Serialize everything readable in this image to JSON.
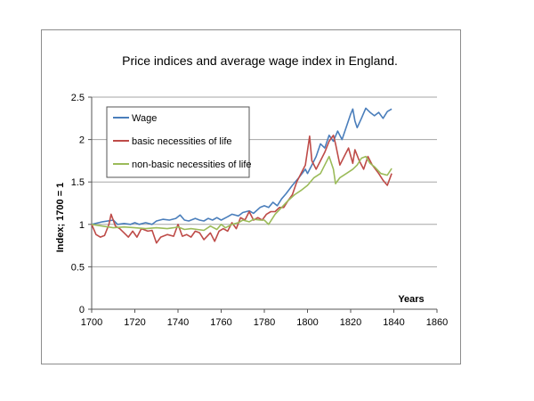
{
  "chart_data": {
    "type": "line",
    "title": "Price indices and average wage index in England.",
    "xlabel": "Years",
    "ylabel": "Index; 1700 = 1",
    "xlim": [
      1700,
      1860
    ],
    "ylim": [
      0,
      2.5
    ],
    "xticks": [
      1700,
      1720,
      1740,
      1760,
      1780,
      1800,
      1820,
      1840,
      1860
    ],
    "yticks": [
      0,
      0.5,
      1,
      1.5,
      2,
      2.5
    ],
    "xtick_labels": [
      "1700",
      "1720",
      "1740",
      "1760",
      "1780",
      "1800",
      "1820",
      "1840",
      "1860"
    ],
    "ytick_labels": [
      "0",
      "0.5",
      "1",
      "1.5",
      "2",
      "2.5"
    ],
    "grid": "horizontal",
    "legend_position": "top-left",
    "series": [
      {
        "name": "Wage",
        "color": "#4a7ebb",
        "points": [
          [
            1700,
            1.0
          ],
          [
            1705,
            1.03
          ],
          [
            1710,
            1.05
          ],
          [
            1712,
            1.0
          ],
          [
            1715,
            1.01
          ],
          [
            1718,
            1.0
          ],
          [
            1720,
            1.02
          ],
          [
            1722,
            1.0
          ],
          [
            1725,
            1.02
          ],
          [
            1728,
            1.0
          ],
          [
            1730,
            1.04
          ],
          [
            1733,
            1.06
          ],
          [
            1736,
            1.05
          ],
          [
            1739,
            1.07
          ],
          [
            1741,
            1.11
          ],
          [
            1743,
            1.05
          ],
          [
            1745,
            1.04
          ],
          [
            1748,
            1.07
          ],
          [
            1750,
            1.05
          ],
          [
            1752,
            1.04
          ],
          [
            1754,
            1.07
          ],
          [
            1756,
            1.05
          ],
          [
            1758,
            1.08
          ],
          [
            1760,
            1.05
          ],
          [
            1763,
            1.09
          ],
          [
            1765,
            1.12
          ],
          [
            1768,
            1.1
          ],
          [
            1770,
            1.14
          ],
          [
            1773,
            1.16
          ],
          [
            1775,
            1.13
          ],
          [
            1778,
            1.2
          ],
          [
            1780,
            1.22
          ],
          [
            1782,
            1.2
          ],
          [
            1784,
            1.26
          ],
          [
            1786,
            1.22
          ],
          [
            1788,
            1.3
          ],
          [
            1790,
            1.36
          ],
          [
            1793,
            1.46
          ],
          [
            1796,
            1.55
          ],
          [
            1799,
            1.65
          ],
          [
            1800,
            1.6
          ],
          [
            1802,
            1.7
          ],
          [
            1804,
            1.8
          ],
          [
            1806,
            1.95
          ],
          [
            1808,
            1.9
          ],
          [
            1810,
            2.05
          ],
          [
            1812,
            1.98
          ],
          [
            1814,
            2.1
          ],
          [
            1816,
            2.0
          ],
          [
            1818,
            2.15
          ],
          [
            1820,
            2.3
          ],
          [
            1821,
            2.36
          ],
          [
            1822,
            2.22
          ],
          [
            1823,
            2.14
          ],
          [
            1825,
            2.25
          ],
          [
            1827,
            2.37
          ],
          [
            1829,
            2.32
          ],
          [
            1831,
            2.28
          ],
          [
            1833,
            2.32
          ],
          [
            1835,
            2.25
          ],
          [
            1837,
            2.33
          ],
          [
            1839,
            2.36
          ]
        ]
      },
      {
        "name": "basic necessities of life",
        "color": "#be4b48",
        "points": [
          [
            1700,
            1.0
          ],
          [
            1702,
            0.88
          ],
          [
            1704,
            0.85
          ],
          [
            1706,
            0.87
          ],
          [
            1708,
            1.0
          ],
          [
            1709,
            1.12
          ],
          [
            1711,
            0.98
          ],
          [
            1713,
            0.95
          ],
          [
            1715,
            0.9
          ],
          [
            1717,
            0.85
          ],
          [
            1719,
            0.92
          ],
          [
            1721,
            0.85
          ],
          [
            1723,
            0.95
          ],
          [
            1726,
            0.92
          ],
          [
            1728,
            0.93
          ],
          [
            1730,
            0.78
          ],
          [
            1732,
            0.85
          ],
          [
            1735,
            0.88
          ],
          [
            1738,
            0.86
          ],
          [
            1740,
            1.0
          ],
          [
            1742,
            0.86
          ],
          [
            1744,
            0.88
          ],
          [
            1746,
            0.85
          ],
          [
            1748,
            0.92
          ],
          [
            1750,
            0.9
          ],
          [
            1752,
            0.82
          ],
          [
            1755,
            0.9
          ],
          [
            1757,
            0.8
          ],
          [
            1759,
            0.92
          ],
          [
            1761,
            0.95
          ],
          [
            1763,
            0.92
          ],
          [
            1765,
            1.02
          ],
          [
            1767,
            0.95
          ],
          [
            1769,
            1.08
          ],
          [
            1771,
            1.05
          ],
          [
            1773,
            1.15
          ],
          [
            1775,
            1.05
          ],
          [
            1777,
            1.08
          ],
          [
            1779,
            1.05
          ],
          [
            1781,
            1.12
          ],
          [
            1783,
            1.15
          ],
          [
            1785,
            1.15
          ],
          [
            1787,
            1.2
          ],
          [
            1789,
            1.2
          ],
          [
            1791,
            1.28
          ],
          [
            1793,
            1.35
          ],
          [
            1795,
            1.5
          ],
          [
            1797,
            1.6
          ],
          [
            1799,
            1.7
          ],
          [
            1801,
            2.04
          ],
          [
            1802,
            1.75
          ],
          [
            1804,
            1.65
          ],
          [
            1806,
            1.75
          ],
          [
            1808,
            1.85
          ],
          [
            1810,
            1.98
          ],
          [
            1812,
            2.05
          ],
          [
            1813,
            1.95
          ],
          [
            1815,
            1.7
          ],
          [
            1817,
            1.8
          ],
          [
            1819,
            1.9
          ],
          [
            1821,
            1.72
          ],
          [
            1822,
            1.88
          ],
          [
            1824,
            1.75
          ],
          [
            1826,
            1.65
          ],
          [
            1828,
            1.8
          ],
          [
            1830,
            1.7
          ],
          [
            1833,
            1.6
          ],
          [
            1835,
            1.52
          ],
          [
            1837,
            1.46
          ],
          [
            1839,
            1.6
          ]
        ]
      },
      {
        "name": "non-basic necessities of life",
        "color": "#9bbb59",
        "points": [
          [
            1700,
            1.0
          ],
          [
            1705,
            0.98
          ],
          [
            1710,
            0.96
          ],
          [
            1715,
            0.97
          ],
          [
            1720,
            0.96
          ],
          [
            1725,
            0.95
          ],
          [
            1730,
            0.96
          ],
          [
            1735,
            0.95
          ],
          [
            1738,
            0.96
          ],
          [
            1740,
            0.97
          ],
          [
            1743,
            0.94
          ],
          [
            1746,
            0.95
          ],
          [
            1749,
            0.94
          ],
          [
            1752,
            0.93
          ],
          [
            1755,
            0.98
          ],
          [
            1758,
            0.94
          ],
          [
            1760,
            1.0
          ],
          [
            1762,
            0.96
          ],
          [
            1765,
            1.0
          ],
          [
            1768,
            1.02
          ],
          [
            1770,
            1.05
          ],
          [
            1773,
            1.03
          ],
          [
            1775,
            1.06
          ],
          [
            1778,
            1.05
          ],
          [
            1780,
            1.05
          ],
          [
            1782,
            1.0
          ],
          [
            1785,
            1.12
          ],
          [
            1788,
            1.2
          ],
          [
            1791,
            1.28
          ],
          [
            1794,
            1.35
          ],
          [
            1797,
            1.4
          ],
          [
            1800,
            1.46
          ],
          [
            1803,
            1.55
          ],
          [
            1806,
            1.6
          ],
          [
            1808,
            1.7
          ],
          [
            1810,
            1.8
          ],
          [
            1812,
            1.65
          ],
          [
            1813,
            1.48
          ],
          [
            1815,
            1.55
          ],
          [
            1818,
            1.6
          ],
          [
            1821,
            1.65
          ],
          [
            1823,
            1.7
          ],
          [
            1825,
            1.78
          ],
          [
            1827,
            1.8
          ],
          [
            1829,
            1.72
          ],
          [
            1831,
            1.68
          ],
          [
            1834,
            1.6
          ],
          [
            1837,
            1.58
          ],
          [
            1839,
            1.66
          ]
        ]
      }
    ]
  }
}
